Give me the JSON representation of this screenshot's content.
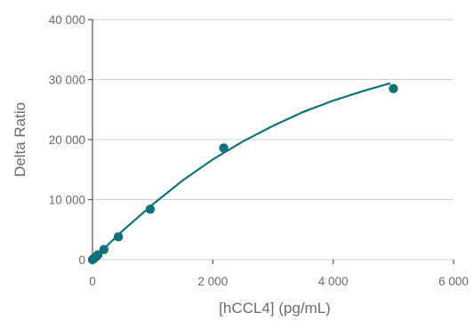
{
  "chart_data": {
    "type": "scatter",
    "title": "",
    "xlabel": "[hCCL4] (pg/mL)",
    "ylabel": "Delta Ratio",
    "xlim": [
      0,
      6000
    ],
    "ylim": [
      0,
      40000
    ],
    "x_ticks": [
      0,
      2000,
      4000,
      6000
    ],
    "x_tick_labels": [
      "0",
      "2 000",
      "4 000",
      "6 000"
    ],
    "y_ticks": [
      0,
      10000,
      20000,
      30000,
      40000
    ],
    "y_tick_labels": [
      "0",
      "10 000",
      "20 000",
      "30 000",
      "40 000"
    ],
    "grid": "horizontal",
    "color": "#0f7377",
    "series": [
      {
        "points": [
          {
            "x": 0,
            "y": 0
          },
          {
            "x": 15,
            "y": 100
          },
          {
            "x": 30,
            "y": 250
          },
          {
            "x": 60,
            "y": 500
          },
          {
            "x": 90,
            "y": 800
          },
          {
            "x": 190,
            "y": 1700
          },
          {
            "x": 430,
            "y": 3800
          },
          {
            "x": 960,
            "y": 8400
          },
          {
            "x": 2180,
            "y": 18600
          },
          {
            "x": 5000,
            "y": 28500
          }
        ]
      }
    ],
    "fit_curve": {
      "x": [
        0,
        500,
        1000,
        1500,
        2000,
        2500,
        3000,
        3500,
        4000,
        4500,
        4950
      ],
      "y": [
        0,
        4800,
        9200,
        13200,
        16700,
        19700,
        22300,
        24600,
        26500,
        28100,
        29400
      ]
    }
  }
}
